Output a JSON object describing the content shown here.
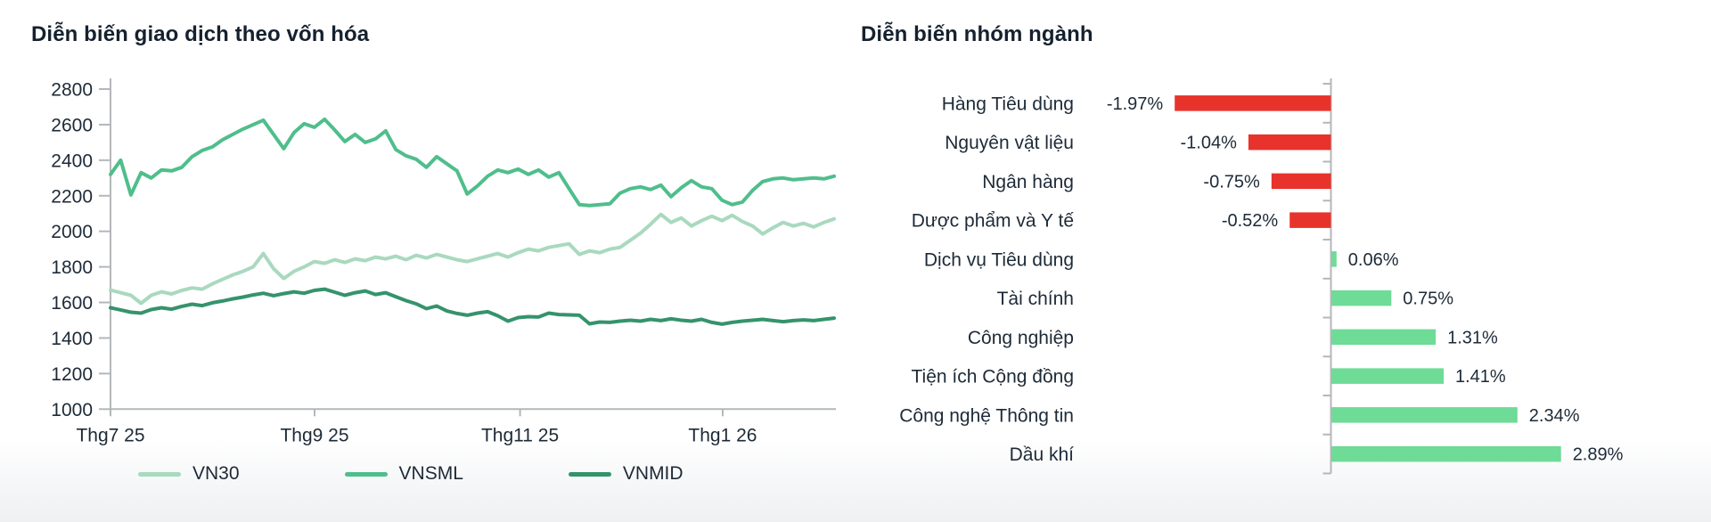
{
  "colors": {
    "title_text": "#15212e",
    "label_text": "#1d2a37",
    "axis_line": "#b4b7ba",
    "positive_green": "#6edb96",
    "negative_red": "#e7332b",
    "vn30_green": "#a9d9bf",
    "vnsml_green": "#4fbe8b",
    "vnmid_green": "#35936b"
  },
  "left_chart": {
    "title": "Diễn biến giao dịch theo vốn hóa",
    "chart_data": {
      "type": "line",
      "title": "Diễn biến giao dịch theo vốn hóa",
      "xlabel": "",
      "ylabel": "",
      "ylim": [
        1000,
        2800
      ],
      "grid": false,
      "legend_position": "bottom",
      "yticks": [
        2800,
        2600,
        2400,
        2200,
        2000,
        1800,
        1600,
        1400,
        1200,
        1000
      ],
      "xticks": [
        {
          "label": "Thg7 25",
          "f": 0.0
        },
        {
          "label": "Thg9 25",
          "f": 0.282
        },
        {
          "label": "Thg11 25",
          "f": 0.566
        },
        {
          "label": "Thg1 26",
          "f": 0.846
        }
      ],
      "series": [
        {
          "name": "VN30",
          "color": "#a9d9bf",
          "values": [
            1670,
            1655,
            1640,
            1595,
            1640,
            1660,
            1648,
            1668,
            1682,
            1675,
            1705,
            1730,
            1755,
            1775,
            1800,
            1875,
            1790,
            1735,
            1775,
            1800,
            1830,
            1820,
            1840,
            1825,
            1845,
            1835,
            1855,
            1845,
            1860,
            1840,
            1865,
            1850,
            1870,
            1855,
            1840,
            1830,
            1845,
            1860,
            1875,
            1855,
            1880,
            1900,
            1890,
            1910,
            1920,
            1930,
            1870,
            1890,
            1880,
            1900,
            1910,
            1950,
            1990,
            2040,
            2095,
            2050,
            2075,
            2030,
            2060,
            2085,
            2060,
            2090,
            2055,
            2030,
            1985,
            2020,
            2050,
            2030,
            2045,
            2025,
            2050,
            2070
          ]
        },
        {
          "name": "VNSML",
          "color": "#4fbe8b",
          "values": [
            2320,
            2400,
            2205,
            2330,
            2300,
            2345,
            2340,
            2360,
            2420,
            2455,
            2475,
            2515,
            2545,
            2575,
            2600,
            2625,
            2545,
            2465,
            2555,
            2605,
            2585,
            2630,
            2570,
            2505,
            2545,
            2500,
            2520,
            2565,
            2460,
            2425,
            2405,
            2360,
            2420,
            2380,
            2340,
            2210,
            2255,
            2310,
            2345,
            2330,
            2350,
            2320,
            2345,
            2305,
            2330,
            2240,
            2150,
            2145,
            2150,
            2155,
            2215,
            2240,
            2250,
            2235,
            2260,
            2195,
            2245,
            2285,
            2250,
            2240,
            2175,
            2150,
            2165,
            2230,
            2280,
            2295,
            2300,
            2290,
            2295,
            2300,
            2295,
            2310
          ]
        },
        {
          "name": "VNMID",
          "color": "#35936b",
          "values": [
            1570,
            1558,
            1545,
            1540,
            1560,
            1570,
            1562,
            1578,
            1590,
            1582,
            1598,
            1608,
            1620,
            1630,
            1642,
            1652,
            1638,
            1650,
            1660,
            1652,
            1668,
            1675,
            1658,
            1640,
            1655,
            1665,
            1645,
            1655,
            1632,
            1610,
            1592,
            1565,
            1580,
            1552,
            1538,
            1528,
            1540,
            1548,
            1525,
            1495,
            1515,
            1520,
            1518,
            1540,
            1532,
            1530,
            1528,
            1480,
            1490,
            1488,
            1495,
            1500,
            1495,
            1505,
            1498,
            1508,
            1500,
            1495,
            1505,
            1488,
            1478,
            1488,
            1495,
            1500,
            1505,
            1498,
            1492,
            1498,
            1502,
            1498,
            1505,
            1512
          ]
        }
      ]
    }
  },
  "right_chart": {
    "title": "Diễn biến nhóm ngành",
    "chart_data": {
      "type": "bar",
      "orientation": "horizontal",
      "title": "Diễn biến nhóm ngành",
      "xlabel": "",
      "ylabel": "",
      "grid": false,
      "categories": [
        "Hàng Tiêu dùng",
        "Nguyên vật liệu",
        "Ngân hàng",
        "Dược phẩm và Y tế",
        "Dịch vụ Tiêu dùng",
        "Tài chính",
        "Công nghiệp",
        "Tiện ích Cộng đồng",
        "Công nghệ Thông tin",
        "Dầu khí"
      ],
      "values": [
        -1.97,
        -1.04,
        -0.75,
        -0.52,
        0.06,
        0.75,
        1.31,
        1.41,
        2.34,
        2.89
      ],
      "value_labels": [
        "-1.97%",
        "-1.04%",
        "-0.75%",
        "-0.52%",
        "0.06%",
        "0.75%",
        "1.31%",
        "1.41%",
        "2.34%",
        "2.89%"
      ],
      "negative_color": "#e7332b",
      "positive_color": "#6edb96"
    }
  }
}
